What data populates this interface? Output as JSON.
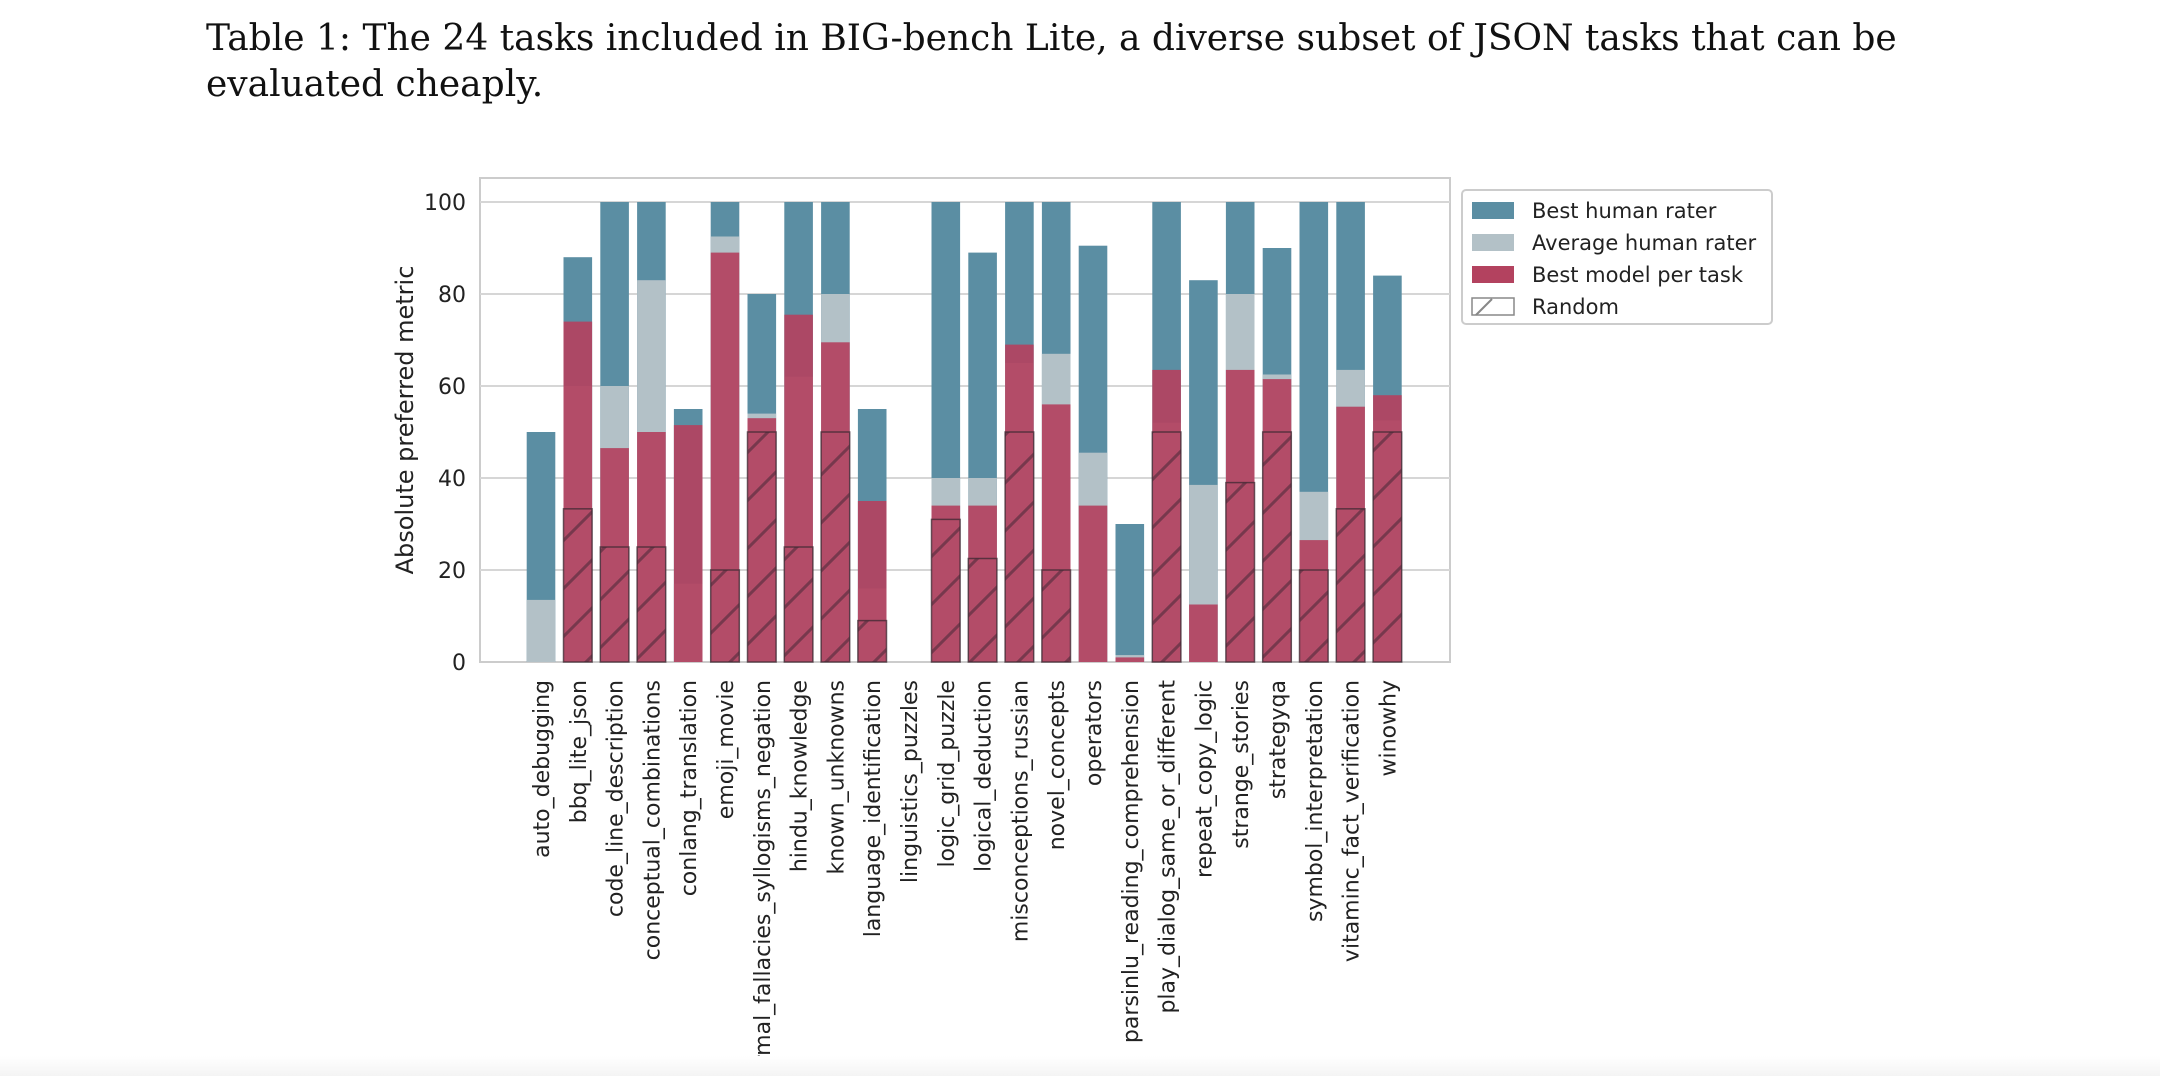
{
  "caption": "Table 1: The 24 tasks included in BIG-bench Lite, a diverse subset of JSON tasks that can be evaluated cheaply.",
  "chart_data": {
    "type": "bar",
    "ylabel": "Absolute preferred metric",
    "xlabel": "",
    "ylim": [
      0,
      100
    ],
    "yticks": [
      0,
      20,
      40,
      60,
      80,
      100
    ],
    "grid": true,
    "legend_position": "top-right",
    "categories": [
      "auto_debugging",
      "bbq_lite_json",
      "code_line_description",
      "conceptual_combinations",
      "conlang_translation",
      "emoji_movie",
      "formal_fallacies_syllogisms_negation",
      "hindu_knowledge",
      "known_unknowns",
      "language_identification",
      "linguistics_puzzles",
      "logic_grid_puzzle",
      "logical_deduction",
      "misconceptions_russian",
      "novel_concepts",
      "operators",
      "parsinlu_reading_comprehension",
      "play_dialog_same_or_different",
      "repeat_copy_logic",
      "strange_stories",
      "strategyqa",
      "symbol_interpretation",
      "vitaminc_fact_verification",
      "winowhy"
    ],
    "series": [
      {
        "name": "Best human rater",
        "color": "#5b8ea3",
        "values": [
          50,
          88,
          100,
          100,
          55,
          100,
          80,
          100,
          100,
          55,
          0,
          100,
          89,
          100,
          100,
          90.5,
          30,
          100,
          83,
          100,
          90,
          100,
          100,
          84
        ]
      },
      {
        "name": "Average human rater",
        "color": "#b3c1c7",
        "values": [
          13.5,
          60,
          60,
          83,
          17,
          92.5,
          54,
          62,
          80,
          16,
          0,
          40,
          40,
          65,
          67,
          45.5,
          1.5,
          52,
          38.5,
          80,
          62.5,
          37,
          63.5,
          52.5
        ]
      },
      {
        "name": "Best model per task",
        "color": "#b3425f",
        "values": [
          0,
          74,
          46.5,
          50,
          51.5,
          89,
          53,
          75.5,
          69.5,
          35,
          0,
          34,
          34,
          69,
          56,
          34,
          1,
          63.5,
          12.5,
          63.5,
          61.5,
          26.5,
          55.5,
          58
        ]
      },
      {
        "name": "Random",
        "color": "#777777",
        "values": [
          0,
          33.3,
          25,
          25,
          0,
          20,
          50,
          25,
          50,
          9,
          0,
          31,
          22.5,
          50,
          20,
          0,
          0,
          50,
          0,
          39,
          50,
          20,
          33.3,
          50
        ]
      }
    ]
  }
}
